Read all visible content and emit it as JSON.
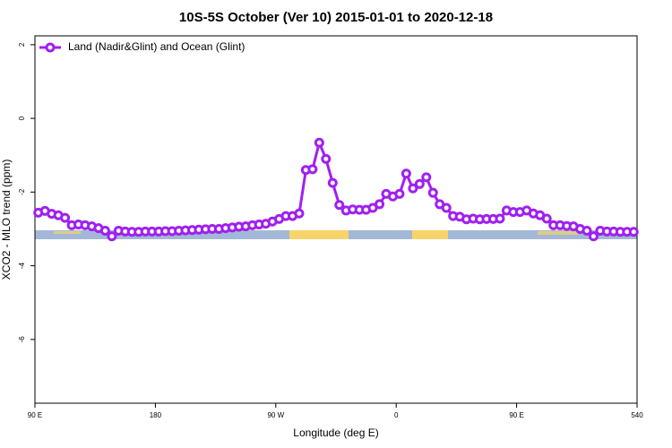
{
  "chart_data": {
    "type": "line",
    "title": "10S-5S October (Ver 10)   2015-01-01 to 2020-12-18",
    "x_label": "Longitude (deg E)",
    "y_label": "XCO2 - MLO trend (ppm)",
    "xlim": [
      90,
      540
    ],
    "ylim": [
      -7.73,
      2.24
    ],
    "xticks": [
      {
        "value": 90,
        "label": "90 E"
      },
      180,
      {
        "value": 270,
        "label": "90 W"
      },
      {
        "value": 360,
        "label": "0"
      },
      {
        "value": 450,
        "label": "90 E"
      },
      540
    ],
    "yticks": [
      2,
      0,
      -2,
      -4,
      -6
    ],
    "legend": "top-left",
    "x": [
      92.5,
      97.5,
      102.5,
      107.5,
      112.5,
      117.5,
      122.5,
      127.5,
      132.5,
      137.5,
      142.5,
      147.5,
      152.5,
      157.5,
      162.5,
      167.5,
      172.5,
      177.5,
      182.5,
      187.5,
      192.5,
      197.5,
      202.5,
      207.5,
      212.5,
      217.5,
      222.5,
      227.5,
      232.5,
      237.5,
      242.5,
      247.5,
      252.5,
      257.5,
      262.5,
      267.5,
      272.5,
      277.5,
      282.5,
      287.5,
      292.5,
      297.5,
      302.5,
      307.5,
      312.5,
      317.5,
      322.5,
      327.5,
      332.5,
      337.5,
      342.5,
      347.5,
      352.5,
      357.5,
      362.5,
      367.5,
      372.5,
      377.5,
      382.5,
      387.5,
      392.5,
      397.5,
      402.5,
      407.5,
      412.5,
      417.5,
      422.5,
      427.5,
      432.5,
      437.5,
      442.5,
      447.5,
      452.5,
      457.5,
      462.5,
      467.5,
      472.5,
      477.5,
      482.5,
      487.5,
      492.5,
      497.5,
      502.5,
      507.5,
      512.5,
      517.5,
      522.5,
      527.5,
      532.5,
      537.5
    ],
    "series": [
      {
        "name": "Land (Nadir&Glint) and Ocean (Glint)",
        "color": "#a020f0",
        "values": [
          -2.56,
          -2.51,
          -2.59,
          -2.63,
          -2.7,
          -2.9,
          -2.88,
          -2.9,
          -2.93,
          -2.98,
          -3.05,
          -3.2,
          -3.05,
          -3.07,
          -3.08,
          -3.08,
          -3.07,
          -3.07,
          -3.07,
          -3.06,
          -3.06,
          -3.05,
          -3.04,
          -3.03,
          -3.02,
          -3.01,
          -3.0,
          -3.0,
          -2.98,
          -2.96,
          -2.94,
          -2.93,
          -2.9,
          -2.88,
          -2.86,
          -2.8,
          -2.73,
          -2.65,
          -2.65,
          -2.58,
          -1.4,
          -1.38,
          -0.66,
          -1.1,
          -1.75,
          -2.35,
          -2.5,
          -2.47,
          -2.48,
          -2.48,
          -2.43,
          -2.33,
          -2.05,
          -2.12,
          -2.05,
          -1.5,
          -1.9,
          -1.78,
          -1.6,
          -2.02,
          -2.33,
          -2.43,
          -2.65,
          -2.67,
          -2.74,
          -2.72,
          -2.74,
          -2.73,
          -2.73,
          -2.72,
          -2.5,
          -2.54,
          -2.54,
          -2.5,
          -2.58,
          -2.63,
          -2.72,
          -2.9,
          -2.9,
          -2.92,
          -2.93,
          -3.0,
          -3.05,
          -3.2,
          -3.05,
          -3.07,
          -3.07,
          -3.08,
          -3.08,
          -3.08
        ]
      }
    ]
  }
}
